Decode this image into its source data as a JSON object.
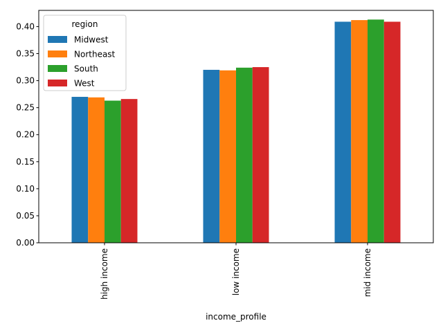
{
  "chart_data": {
    "type": "bar",
    "categories": [
      "high income",
      "low income",
      "mid income"
    ],
    "series": [
      {
        "name": "Midwest",
        "color": "#1f77b4",
        "values": [
          0.27,
          0.32,
          0.409
        ]
      },
      {
        "name": "Northeast",
        "color": "#ff7f0e",
        "values": [
          0.269,
          0.319,
          0.412
        ]
      },
      {
        "name": "South",
        "color": "#2ca02c",
        "values": [
          0.263,
          0.324,
          0.413
        ]
      },
      {
        "name": "West",
        "color": "#d62728",
        "values": [
          0.266,
          0.325,
          0.409
        ]
      }
    ],
    "xlabel": "income_profile",
    "ylabel": "",
    "ylim": [
      0,
      0.43
    ],
    "yticks": [
      "0.00",
      "0.05",
      "0.10",
      "0.15",
      "0.20",
      "0.25",
      "0.30",
      "0.35",
      "0.40"
    ],
    "legend": {
      "title": "region",
      "placement": "top-left"
    },
    "grid": false
  }
}
